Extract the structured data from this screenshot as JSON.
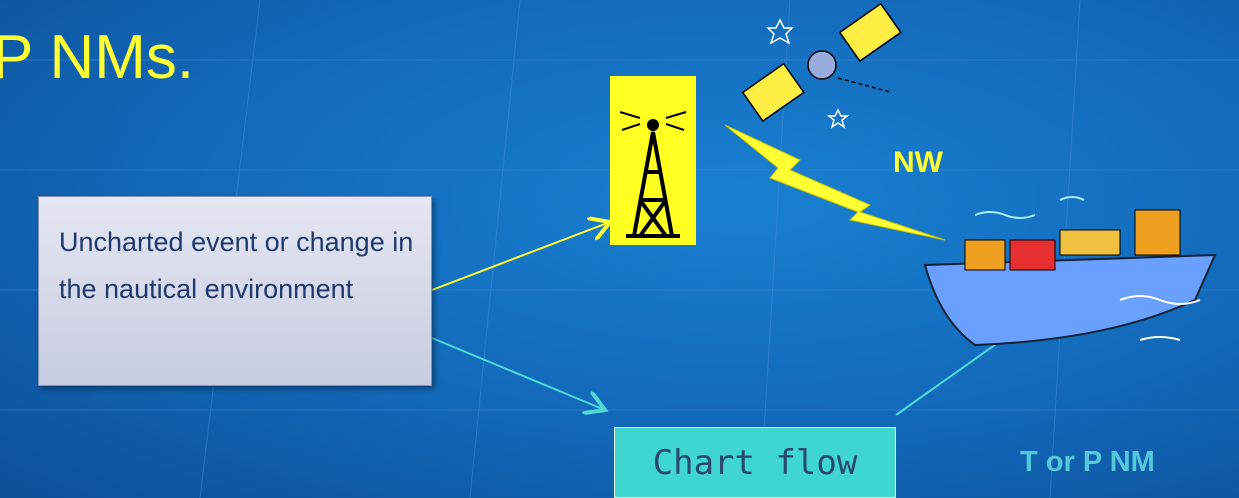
{
  "header": {
    "title": "P NMs."
  },
  "nodes": [
    {
      "label": "Uncharted event or change in the nautical environment"
    },
    {
      "label": "Chart flow"
    }
  ],
  "labels": [
    "NW",
    "T or P NM"
  ]
}
